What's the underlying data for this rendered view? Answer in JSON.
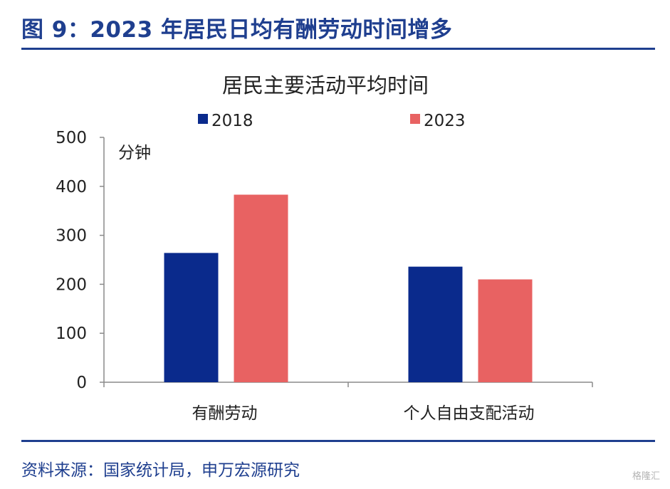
{
  "figure": {
    "title": "图 9：2023 年居民日均有酬劳动时间增多",
    "source": "资料来源：国家统计局，申万宏源研究",
    "watermark": "格隆汇"
  },
  "colors": {
    "accent": "#1f3f8f",
    "series_2018": "#0a2a8c",
    "series_2023": "#e86262"
  },
  "chart_data": {
    "type": "bar",
    "title": "居民主要活动平均时间",
    "unit_label": "分钟",
    "categories": [
      "有酬劳动",
      "个人自由支配活动"
    ],
    "series": [
      {
        "name": "2018",
        "values": [
          264,
          236
        ],
        "color": "#0a2a8c"
      },
      {
        "name": "2023",
        "values": [
          383,
          210
        ],
        "color": "#e86262"
      }
    ],
    "ylim": [
      0,
      500
    ],
    "yticks": [
      0,
      100,
      200,
      300,
      400,
      500
    ],
    "grid": false,
    "legend": "top"
  }
}
